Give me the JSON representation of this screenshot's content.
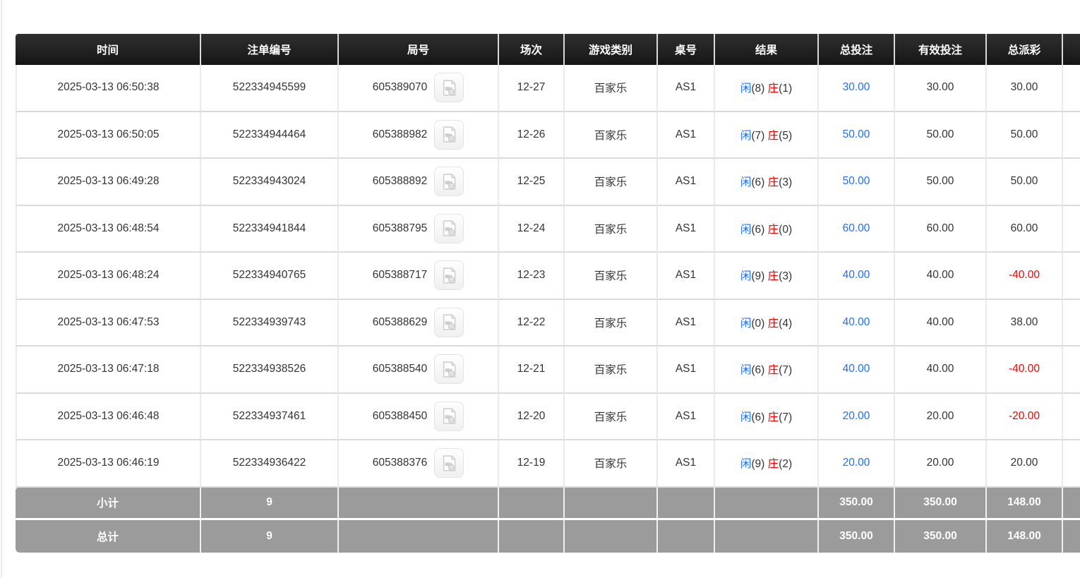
{
  "table": {
    "columns": [
      {
        "key": "time",
        "label": "时间"
      },
      {
        "key": "bet_id",
        "label": "注单编号"
      },
      {
        "key": "round",
        "label": "局号"
      },
      {
        "key": "session",
        "label": "场次"
      },
      {
        "key": "game_type",
        "label": "游戏类别"
      },
      {
        "key": "table_no",
        "label": "桌号"
      },
      {
        "key": "result",
        "label": "结果"
      },
      {
        "key": "total_bet",
        "label": "总投注"
      },
      {
        "key": "valid_bet",
        "label": "有效投注"
      },
      {
        "key": "total_payout",
        "label": "总派彩"
      },
      {
        "key": "extra",
        "label": ""
      }
    ],
    "result_labels": {
      "player": "闲",
      "banker": "庄"
    },
    "rows": [
      {
        "time": "2025-03-13 06:50:38",
        "bet_id": "522334945599",
        "round": "605389070",
        "session": "12-27",
        "game_type": "百家乐",
        "table_no": "AS1",
        "result": {
          "player_points": "(8)",
          "banker_points": "(1)"
        },
        "total_bet": "30.00",
        "valid_bet": "30.00",
        "total_payout": "30.00"
      },
      {
        "time": "2025-03-13 06:50:05",
        "bet_id": "522334944464",
        "round": "605388982",
        "session": "12-26",
        "game_type": "百家乐",
        "table_no": "AS1",
        "result": {
          "player_points": "(7)",
          "banker_points": "(5)"
        },
        "total_bet": "50.00",
        "valid_bet": "50.00",
        "total_payout": "50.00"
      },
      {
        "time": "2025-03-13 06:49:28",
        "bet_id": "522334943024",
        "round": "605388892",
        "session": "12-25",
        "game_type": "百家乐",
        "table_no": "AS1",
        "result": {
          "player_points": "(6)",
          "banker_points": "(3)"
        },
        "total_bet": "50.00",
        "valid_bet": "50.00",
        "total_payout": "50.00"
      },
      {
        "time": "2025-03-13 06:48:54",
        "bet_id": "522334941844",
        "round": "605388795",
        "session": "12-24",
        "game_type": "百家乐",
        "table_no": "AS1",
        "result": {
          "player_points": "(6)",
          "banker_points": "(0)"
        },
        "total_bet": "60.00",
        "valid_bet": "60.00",
        "total_payout": "60.00"
      },
      {
        "time": "2025-03-13 06:48:24",
        "bet_id": "522334940765",
        "round": "605388717",
        "session": "12-23",
        "game_type": "百家乐",
        "table_no": "AS1",
        "result": {
          "player_points": "(9)",
          "banker_points": "(3)"
        },
        "total_bet": "40.00",
        "valid_bet": "40.00",
        "total_payout": "-40.00"
      },
      {
        "time": "2025-03-13 06:47:53",
        "bet_id": "522334939743",
        "round": "605388629",
        "session": "12-22",
        "game_type": "百家乐",
        "table_no": "AS1",
        "result": {
          "player_points": "(0)",
          "banker_points": "(4)"
        },
        "total_bet": "40.00",
        "valid_bet": "40.00",
        "total_payout": "38.00"
      },
      {
        "time": "2025-03-13 06:47:18",
        "bet_id": "522334938526",
        "round": "605388540",
        "session": "12-21",
        "game_type": "百家乐",
        "table_no": "AS1",
        "result": {
          "player_points": "(6)",
          "banker_points": "(7)"
        },
        "total_bet": "40.00",
        "valid_bet": "40.00",
        "total_payout": "-40.00"
      },
      {
        "time": "2025-03-13 06:46:48",
        "bet_id": "522334937461",
        "round": "605388450",
        "session": "12-20",
        "game_type": "百家乐",
        "table_no": "AS1",
        "result": {
          "player_points": "(6)",
          "banker_points": "(7)"
        },
        "total_bet": "20.00",
        "valid_bet": "20.00",
        "total_payout": "-20.00"
      },
      {
        "time": "2025-03-13 06:46:19",
        "bet_id": "522334936422",
        "round": "605388376",
        "session": "12-19",
        "game_type": "百家乐",
        "table_no": "AS1",
        "result": {
          "player_points": "(9)",
          "banker_points": "(2)"
        },
        "total_bet": "20.00",
        "valid_bet": "20.00",
        "total_payout": "20.00"
      }
    ],
    "footer": [
      {
        "name": "subtotal",
        "label": "小计",
        "count": "9",
        "total_bet": "350.00",
        "valid_bet": "350.00",
        "total_payout": "148.00"
      },
      {
        "name": "total",
        "label": "总计",
        "count": "9",
        "total_bet": "350.00",
        "valid_bet": "350.00",
        "total_payout": "148.00"
      }
    ]
  },
  "icons": {
    "video": "video-replay-icon"
  },
  "colors": {
    "header_bg": "#1f1f1f",
    "header_text": "#ffffff",
    "accent_blue": "#1f6ff2",
    "negative_red": "#f20000",
    "footer_bg": "#9b9b9b",
    "row_text": "#333333"
  }
}
